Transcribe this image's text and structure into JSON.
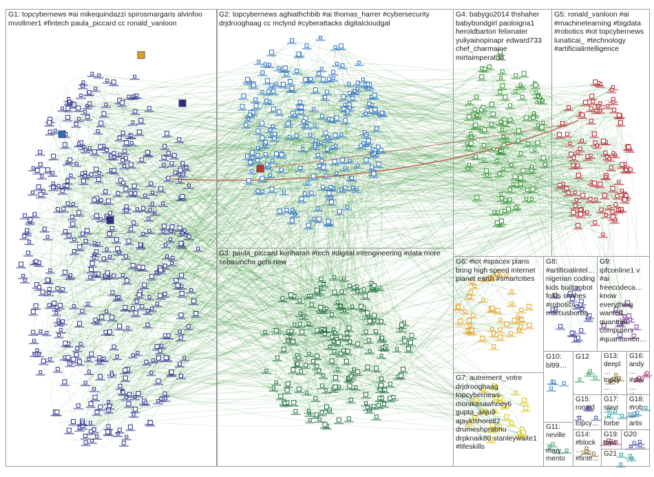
{
  "groups": [
    {
      "id": "G1",
      "label": "G1: topcybernews #ai mikequindazzi spirosmargaris alvinfoo mvollmer1 #fintech paula_piccard cc ronald_vanloon"
    },
    {
      "id": "G2",
      "label": "G2: topcybernews aghiathchbib #ai thomas_harrer #cybersecurity drjdrooghaag cc mclynd #cyberattacks digitalcloudgal"
    },
    {
      "id": "G3",
      "label": "G3: paula_piccard kuriharan #tech #digital intengineering #data more sebasincha gets new"
    },
    {
      "id": "G4",
      "label": "G4: babygo2014 thshaher babybondgirl paoloigna1 heroldbarton felixnater yuliyainopinapr edward733 chef_charmaine mirtaimperatori"
    },
    {
      "id": "G5",
      "label": "G5: ronald_vanloon #ai #machinelearning #bigdata #robotics #iot topcybernews lunaticai_ #technology #artificialintelligence"
    },
    {
      "id": "G6",
      "label": "G6: #iot #spacex plans bring high speed internet planet earth #smartcities"
    },
    {
      "id": "G7",
      "label": "G7: autrement_votre drjdrooghaag topcybernews monikasawhney6 gupta_anju9 ajaykishore82 drumeshprabhu drpknaik80 stanleywaite1 #lifeskills"
    },
    {
      "id": "G8",
      "label": "G8: #artificialintel… nigerian coding kids built robot folds clothes #robotics marcusborba"
    },
    {
      "id": "G9",
      "label": "G9: ipfconline1 v #ai freecodeca… know everything wanted quantum computers #quantumco…"
    },
    {
      "id": "G10",
      "label": "G10: bl99…"
    },
    {
      "id": "G11",
      "label": "G11: neville… mary… mento… topcy…"
    },
    {
      "id": "G12",
      "label": "G12"
    },
    {
      "id": "G13",
      "label": "G13: deepl… topcy… spiro…"
    },
    {
      "id": "G14",
      "label": "G14: #block… #finte…"
    },
    {
      "id": "G15",
      "label": "G15: ronald… topcy…"
    },
    {
      "id": "G16",
      "label": "G16: andy… #star… #inn…"
    },
    {
      "id": "G17",
      "label": "G17: stavr… forbe…"
    },
    {
      "id": "G18",
      "label": "G18: #rob… artis…"
    },
    {
      "id": "G19",
      "label": "G19: topc…"
    },
    {
      "id": "G20",
      "label": "G20"
    },
    {
      "id": "G21",
      "label": "G21"
    }
  ],
  "colors": {
    "edge": "#1f8a1f",
    "edge_highlight": "#c0392b",
    "border": "#9a9a9a",
    "g1_node": "#2b2f8a",
    "g2_node": "#2a6fc0",
    "g3_node": "#1c6b3a",
    "g4_node": "#2f8f2f",
    "g5_node": "#b0202a",
    "g6_node": "#e0a020",
    "g7_node": "#d9c400",
    "g8_node": "#3d3d9c",
    "g9_node": "#7a3aa0",
    "small_nodes": [
      "#2f7fb0",
      "#3aa06a",
      "#8a6a2a",
      "#b03a7a",
      "#4a4ab0",
      "#2a9a9a"
    ]
  }
}
